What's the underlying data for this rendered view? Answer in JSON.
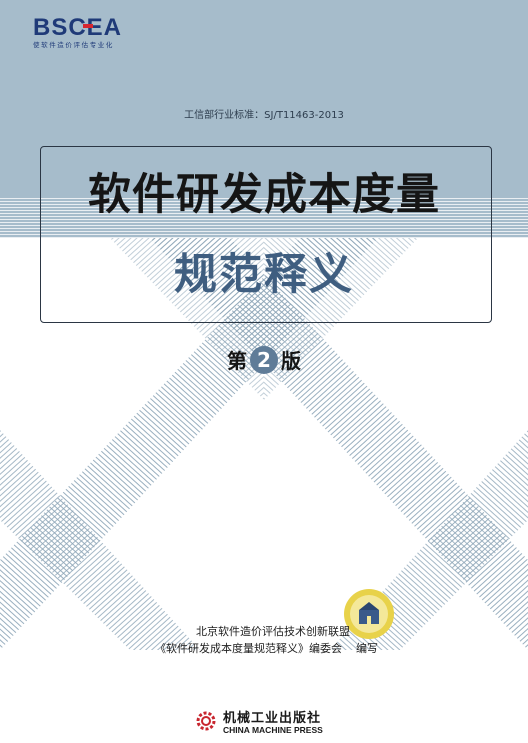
{
  "logo": {
    "wordmark": "BSCEA",
    "tagline": "使软件造价评估专业化"
  },
  "standard_line": "工信部行业标准：SJ/T11463-2013",
  "title": {
    "line1": "软件研发成本度量",
    "line2": "规范释义"
  },
  "edition": {
    "prefix": "第",
    "number": "2",
    "suffix": "版"
  },
  "editors": {
    "line1": "北京软件造价评估技术创新联盟",
    "line2_book": "《软件研发成本度量规范释义》编委会",
    "line2_role": "编写"
  },
  "publisher": {
    "name_zh": "机械工业出版社",
    "name_en": "CHINA MACHINE PRESS"
  },
  "colors": {
    "top_band": "#a6bccb",
    "title_line2": "#3f5e80",
    "logo_red": "#d7262f",
    "logo_blue": "#1f3a78"
  }
}
